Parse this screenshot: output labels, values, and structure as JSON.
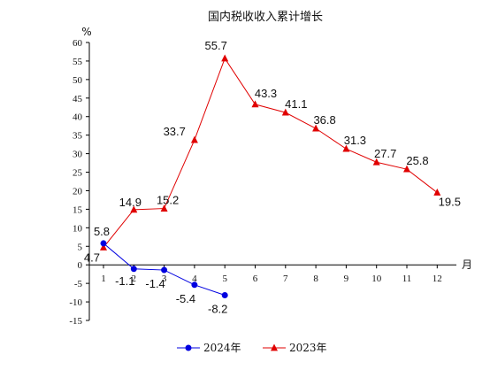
{
  "chart_data": {
    "type": "line",
    "title": "国内税收收入累计增长",
    "ylabel": "%",
    "xlabel": "月",
    "ylim": [
      -15,
      60
    ],
    "yticks": [
      60,
      55,
      50,
      45,
      40,
      35,
      30,
      25,
      20,
      15,
      10,
      5,
      0,
      -5,
      -10,
      -15
    ],
    "x": [
      1,
      2,
      3,
      4,
      5,
      6,
      7,
      8,
      9,
      10,
      11,
      12
    ],
    "x_labels": [
      "1",
      "2",
      "3",
      "4",
      "5",
      "6",
      "7",
      "8",
      "9",
      "10",
      "11",
      "12"
    ],
    "legend_position": "bottom",
    "grid": false,
    "series": [
      {
        "name": "2024年",
        "color": "#0000e0",
        "marker": "circle",
        "x": [
          1,
          2,
          3,
          4,
          5
        ],
        "values": [
          5.8,
          -1.1,
          -1.4,
          -5.4,
          -8.2
        ],
        "labels": [
          "5.8",
          "-1.1",
          "-1.4",
          "-5.4",
          "-8.2"
        ]
      },
      {
        "name": "2023年",
        "color": "#e00000",
        "marker": "triangle",
        "x": [
          1,
          2,
          3,
          4,
          5,
          6,
          7,
          8,
          9,
          10,
          11,
          12
        ],
        "values": [
          4.7,
          14.9,
          15.2,
          33.7,
          55.7,
          43.3,
          41.1,
          36.8,
          31.3,
          27.7,
          25.8,
          19.5
        ],
        "labels": [
          "4.7",
          "14.9",
          "15.2",
          "33.7",
          "55.7",
          "43.3",
          "41.1",
          "36.8",
          "31.3",
          "27.7",
          "25.8",
          "19.5"
        ]
      }
    ]
  }
}
